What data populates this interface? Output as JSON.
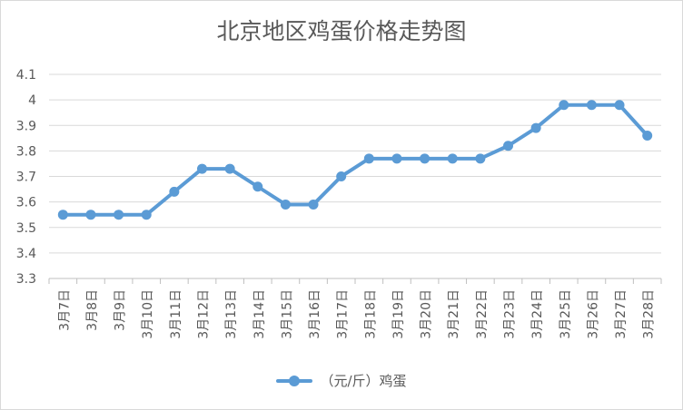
{
  "chart_data": {
    "type": "line",
    "title": "北京地区鸡蛋价格走势图",
    "xlabel": "",
    "ylabel": "",
    "categories": [
      "3月7日",
      "3月8日",
      "3月9日",
      "3月10日",
      "3月11日",
      "3月12日",
      "3月13日",
      "3月14日",
      "3月15日",
      "3月16日",
      "3月17日",
      "3月18日",
      "3月19日",
      "3月20日",
      "3月21日",
      "3月22日",
      "3月23日",
      "3月24日",
      "3月25日",
      "3月26日",
      "3月27日",
      "3月28日"
    ],
    "series": [
      {
        "name": "（元/斤）鸡蛋",
        "color": "#5b9bd5",
        "values": [
          3.55,
          3.55,
          3.55,
          3.55,
          3.64,
          3.73,
          3.73,
          3.66,
          3.59,
          3.59,
          3.7,
          3.77,
          3.77,
          3.77,
          3.77,
          3.77,
          3.82,
          3.89,
          3.98,
          3.98,
          3.98,
          3.86
        ]
      }
    ],
    "ylim": [
      3.3,
      4.1
    ],
    "yticks": [
      "3.3",
      "3.4",
      "3.5",
      "3.6",
      "3.7",
      "3.8",
      "3.9",
      "4",
      "4.1"
    ],
    "grid": true,
    "legend_position": "bottom"
  }
}
